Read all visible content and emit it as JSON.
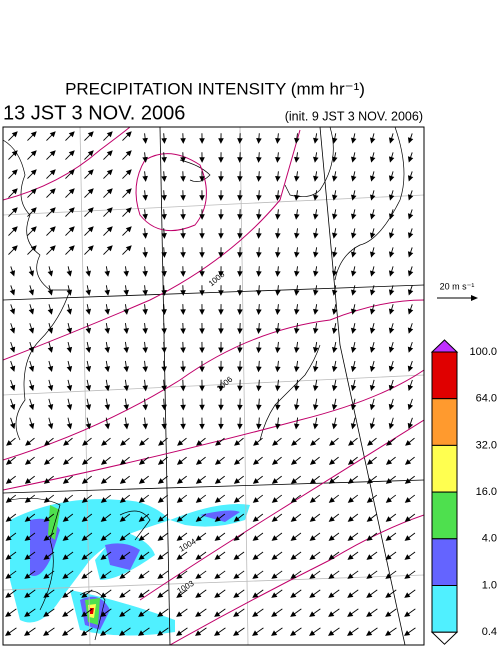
{
  "header": {
    "title": "PRECIPITATION INTENSITY (mm hr⁻¹)",
    "valid_time": "13 JST 3 NOV. 2006",
    "init_time": "(init. 9 JST 3 NOV. 2006)"
  },
  "map": {
    "isobar_labels": [
      "1008",
      "1006",
      "1004",
      "1003"
    ]
  },
  "reference_vector": {
    "label": "20 m s⁻¹"
  },
  "legend": {
    "levels": [
      {
        "label": "100.0",
        "color": "#e00000"
      },
      {
        "label": "64.0",
        "color": "#ff9a2e"
      },
      {
        "label": "32.0",
        "color": "#ffff50"
      },
      {
        "label": "16.0",
        "color": "#4ee04e"
      },
      {
        "label": "4.0",
        "color": "#6464ff"
      },
      {
        "label": "1.0",
        "color": "#50f0ff"
      },
      {
        "label": "0.4",
        "color": "#ffffff"
      }
    ],
    "top_color": "#c030ff"
  }
}
